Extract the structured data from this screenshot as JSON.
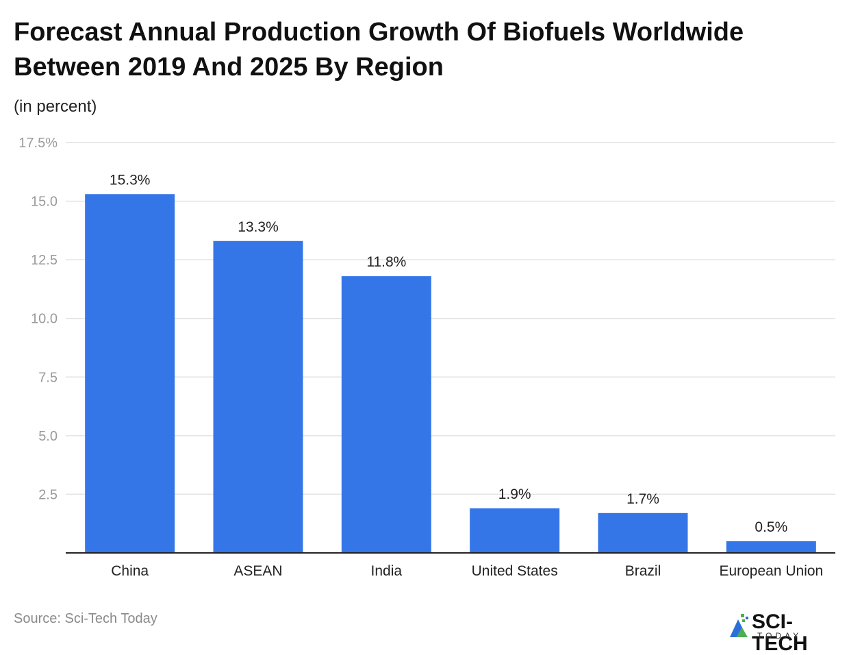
{
  "chart_data": {
    "type": "bar",
    "title": "Forecast Annual Production Growth Of Biofuels Worldwide Between 2019 And 2025 By Region",
    "subtitle": "(in percent)",
    "categories": [
      "China",
      "ASEAN",
      "India",
      "United States",
      "Brazil",
      "European Union"
    ],
    "values": [
      15.3,
      13.3,
      11.8,
      1.9,
      1.7,
      0.5
    ],
    "data_labels": [
      "15.3%",
      "13.3%",
      "11.8%",
      "1.9%",
      "1.7%",
      "0.5%"
    ],
    "ylim": [
      0,
      17.5
    ],
    "yticks": [
      2.5,
      5.0,
      7.5,
      10.0,
      12.5,
      15.0,
      17.5
    ],
    "ytick_labels": [
      "2.5",
      "5.0",
      "7.5",
      "10.0",
      "12.5",
      "15.0",
      "17.5%"
    ],
    "xlabel": "",
    "ylabel": "",
    "grid": true,
    "bar_color": "#3475e8"
  },
  "footer": {
    "source": "Source: Sci-Tech Today",
    "logo_text": "SCI-TECH",
    "logo_sub": "TODAY"
  },
  "colors": {
    "bar": "#3475e8",
    "logo_green": "#4caf50",
    "logo_blue": "#2d6fd6"
  }
}
